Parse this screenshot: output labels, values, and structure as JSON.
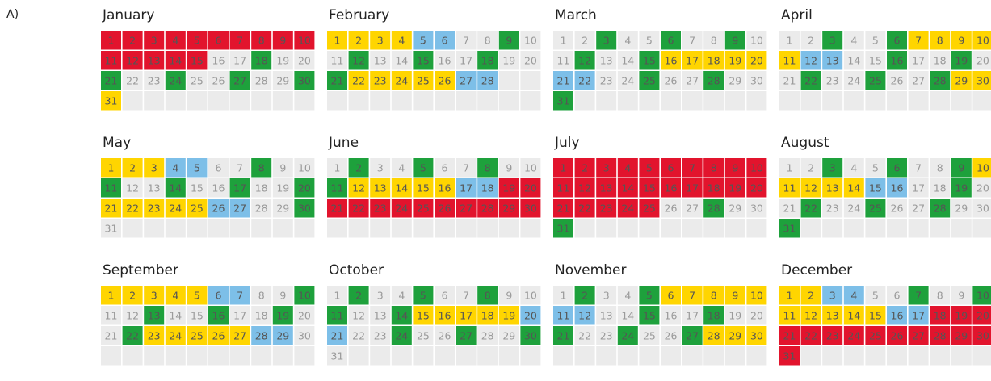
{
  "panel_label": "A)",
  "months": [
    {
      "name": "January",
      "days": [
        1,
        2,
        3,
        4,
        5,
        6,
        7,
        8,
        9,
        10,
        11,
        12,
        13,
        14,
        15,
        16,
        17,
        18,
        19,
        20,
        21,
        22,
        23,
        24,
        25,
        26,
        27,
        28,
        29,
        30,
        31
      ],
      "colors": [
        "#e2142d",
        "#e2142d",
        "#e2142d",
        "#e2142d",
        "#e2142d",
        "#e2142d",
        "#e2142d",
        "#e2142d",
        "#e2142d",
        "#e2142d",
        "#e2142d",
        "#e2142d",
        "#e2142d",
        "#e2142d",
        "#e2142d",
        "#ebebeb",
        "#ebebeb",
        "#1ea13c",
        "#ebebeb",
        "#ebebeb",
        "#1ea13c",
        "#ebebeb",
        "#ebebeb",
        "#1ea13c",
        "#ebebeb",
        "#ebebeb",
        "#1ea13c",
        "#ebebeb",
        "#ebebeb",
        "#1ea13c",
        "#ffd500"
      ]
    },
    {
      "name": "February",
      "days": [
        1,
        2,
        3,
        4,
        5,
        6,
        7,
        8,
        9,
        10,
        11,
        12,
        13,
        14,
        15,
        16,
        17,
        18,
        19,
        20,
        21,
        22,
        23,
        24,
        25,
        26,
        27,
        28
      ],
      "colors": [
        "#ffd500",
        "#ffd500",
        "#ffd500",
        "#ffd500",
        "#7dbfe8",
        "#7dbfe8",
        "#ebebeb",
        "#ebebeb",
        "#1ea13c",
        "#ebebeb",
        "#ebebeb",
        "#1ea13c",
        "#ebebeb",
        "#ebebeb",
        "#1ea13c",
        "#ebebeb",
        "#ebebeb",
        "#1ea13c",
        "#ebebeb",
        "#ebebeb",
        "#1ea13c",
        "#ffd500",
        "#ffd500",
        "#ffd500",
        "#ffd500",
        "#ffd500",
        "#7dbfe8",
        "#7dbfe8"
      ]
    },
    {
      "name": "March",
      "days": [
        1,
        2,
        3,
        4,
        5,
        6,
        7,
        8,
        9,
        10,
        11,
        12,
        13,
        14,
        15,
        16,
        17,
        18,
        19,
        20,
        21,
        22,
        23,
        24,
        25,
        26,
        27,
        28,
        29,
        30,
        31
      ],
      "colors": [
        "#ebebeb",
        "#ebebeb",
        "#1ea13c",
        "#ebebeb",
        "#ebebeb",
        "#1ea13c",
        "#ebebeb",
        "#ebebeb",
        "#1ea13c",
        "#ebebeb",
        "#ebebeb",
        "#1ea13c",
        "#ebebeb",
        "#ebebeb",
        "#1ea13c",
        "#ffd500",
        "#ffd500",
        "#ffd500",
        "#ffd500",
        "#ffd500",
        "#7dbfe8",
        "#7dbfe8",
        "#ebebeb",
        "#ebebeb",
        "#1ea13c",
        "#ebebeb",
        "#ebebeb",
        "#1ea13c",
        "#ebebeb",
        "#ebebeb",
        "#1ea13c"
      ]
    },
    {
      "name": "April",
      "days": [
        1,
        2,
        3,
        4,
        5,
        6,
        7,
        8,
        9,
        10,
        11,
        12,
        13,
        14,
        15,
        16,
        17,
        18,
        19,
        20,
        21,
        22,
        23,
        24,
        25,
        26,
        27,
        28,
        29,
        30
      ],
      "colors": [
        "#ebebeb",
        "#ebebeb",
        "#1ea13c",
        "#ebebeb",
        "#ebebeb",
        "#1ea13c",
        "#ffd500",
        "#ffd500",
        "#ffd500",
        "#ffd500",
        "#ffd500",
        "#7dbfe8",
        "#7dbfe8",
        "#ebebeb",
        "#ebebeb",
        "#1ea13c",
        "#ebebeb",
        "#ebebeb",
        "#1ea13c",
        "#ebebeb",
        "#ebebeb",
        "#1ea13c",
        "#ebebeb",
        "#ebebeb",
        "#1ea13c",
        "#ebebeb",
        "#ebebeb",
        "#1ea13c",
        "#ffd500",
        "#ffd500"
      ]
    },
    {
      "name": "May",
      "days": [
        1,
        2,
        3,
        4,
        5,
        6,
        7,
        8,
        9,
        10,
        11,
        12,
        13,
        14,
        15,
        16,
        17,
        18,
        19,
        20,
        21,
        22,
        23,
        24,
        25,
        26,
        27,
        28,
        29,
        30,
        31
      ],
      "colors": [
        "#ffd500",
        "#ffd500",
        "#ffd500",
        "#7dbfe8",
        "#7dbfe8",
        "#ebebeb",
        "#ebebeb",
        "#1ea13c",
        "#ebebeb",
        "#ebebeb",
        "#1ea13c",
        "#ebebeb",
        "#ebebeb",
        "#1ea13c",
        "#ebebeb",
        "#ebebeb",
        "#1ea13c",
        "#ebebeb",
        "#ebebeb",
        "#1ea13c",
        "#ffd500",
        "#ffd500",
        "#ffd500",
        "#ffd500",
        "#ffd500",
        "#7dbfe8",
        "#7dbfe8",
        "#ebebeb",
        "#ebebeb",
        "#1ea13c",
        "#ebebeb"
      ]
    },
    {
      "name": "June",
      "days": [
        1,
        2,
        3,
        4,
        5,
        6,
        7,
        8,
        9,
        10,
        11,
        12,
        13,
        14,
        15,
        16,
        17,
        18,
        19,
        20,
        21,
        22,
        23,
        24,
        25,
        26,
        27,
        28,
        29,
        30
      ],
      "colors": [
        "#ebebeb",
        "#1ea13c",
        "#ebebeb",
        "#ebebeb",
        "#1ea13c",
        "#ebebeb",
        "#ebebeb",
        "#1ea13c",
        "#ebebeb",
        "#ebebeb",
        "#1ea13c",
        "#ffd500",
        "#ffd500",
        "#ffd500",
        "#ffd500",
        "#ffd500",
        "#7dbfe8",
        "#7dbfe8",
        "#e2142d",
        "#e2142d",
        "#e2142d",
        "#e2142d",
        "#e2142d",
        "#e2142d",
        "#e2142d",
        "#e2142d",
        "#e2142d",
        "#e2142d",
        "#e2142d",
        "#e2142d"
      ]
    },
    {
      "name": "July",
      "days": [
        1,
        2,
        3,
        4,
        5,
        6,
        7,
        8,
        9,
        10,
        11,
        12,
        13,
        14,
        15,
        16,
        17,
        18,
        19,
        20,
        21,
        22,
        23,
        24,
        25,
        26,
        27,
        28,
        29,
        30,
        31
      ],
      "colors": [
        "#e2142d",
        "#e2142d",
        "#e2142d",
        "#e2142d",
        "#e2142d",
        "#e2142d",
        "#e2142d",
        "#e2142d",
        "#e2142d",
        "#e2142d",
        "#e2142d",
        "#e2142d",
        "#e2142d",
        "#e2142d",
        "#e2142d",
        "#e2142d",
        "#e2142d",
        "#e2142d",
        "#e2142d",
        "#e2142d",
        "#e2142d",
        "#e2142d",
        "#e2142d",
        "#e2142d",
        "#e2142d",
        "#ebebeb",
        "#ebebeb",
        "#1ea13c",
        "#ebebeb",
        "#ebebeb",
        "#1ea13c"
      ]
    },
    {
      "name": "August",
      "days": [
        1,
        2,
        3,
        4,
        5,
        6,
        7,
        8,
        9,
        10,
        11,
        12,
        13,
        14,
        15,
        16,
        17,
        18,
        19,
        20,
        21,
        22,
        23,
        24,
        25,
        26,
        27,
        28,
        29,
        30,
        31
      ],
      "colors": [
        "#ebebeb",
        "#ebebeb",
        "#1ea13c",
        "#ebebeb",
        "#ebebeb",
        "#1ea13c",
        "#ebebeb",
        "#ebebeb",
        "#1ea13c",
        "#ffd500",
        "#ffd500",
        "#ffd500",
        "#ffd500",
        "#ffd500",
        "#7dbfe8",
        "#7dbfe8",
        "#ebebeb",
        "#ebebeb",
        "#1ea13c",
        "#ebebeb",
        "#ebebeb",
        "#1ea13c",
        "#ebebeb",
        "#ebebeb",
        "#1ea13c",
        "#ebebeb",
        "#ebebeb",
        "#1ea13c",
        "#ebebeb",
        "#ebebeb",
        "#1ea13c"
      ]
    },
    {
      "name": "September",
      "days": [
        1,
        2,
        3,
        4,
        5,
        6,
        7,
        8,
        9,
        10,
        11,
        12,
        13,
        14,
        15,
        16,
        17,
        18,
        19,
        20,
        21,
        22,
        23,
        24,
        25,
        26,
        27,
        28,
        29,
        30
      ],
      "colors": [
        "#ffd500",
        "#ffd500",
        "#ffd500",
        "#ffd500",
        "#ffd500",
        "#7dbfe8",
        "#7dbfe8",
        "#ebebeb",
        "#ebebeb",
        "#1ea13c",
        "#ebebeb",
        "#ebebeb",
        "#1ea13c",
        "#ebebeb",
        "#ebebeb",
        "#1ea13c",
        "#ebebeb",
        "#ebebeb",
        "#1ea13c",
        "#ebebeb",
        "#ebebeb",
        "#1ea13c",
        "#ffd500",
        "#ffd500",
        "#ffd500",
        "#ffd500",
        "#ffd500",
        "#7dbfe8",
        "#7dbfe8",
        "#ebebeb"
      ]
    },
    {
      "name": "October",
      "days": [
        1,
        2,
        3,
        4,
        5,
        6,
        7,
        8,
        9,
        10,
        11,
        12,
        13,
        14,
        15,
        16,
        17,
        18,
        19,
        20,
        21,
        22,
        23,
        24,
        25,
        26,
        27,
        28,
        29,
        30,
        31
      ],
      "colors": [
        "#ebebeb",
        "#1ea13c",
        "#ebebeb",
        "#ebebeb",
        "#1ea13c",
        "#ebebeb",
        "#ebebeb",
        "#1ea13c",
        "#ebebeb",
        "#ebebeb",
        "#1ea13c",
        "#ebebeb",
        "#ebebeb",
        "#1ea13c",
        "#ffd500",
        "#ffd500",
        "#ffd500",
        "#ffd500",
        "#ffd500",
        "#7dbfe8",
        "#7dbfe8",
        "#ebebeb",
        "#ebebeb",
        "#1ea13c",
        "#ebebeb",
        "#ebebeb",
        "#1ea13c",
        "#ebebeb",
        "#ebebeb",
        "#1ea13c",
        "#ebebeb"
      ]
    },
    {
      "name": "November",
      "days": [
        1,
        2,
        3,
        4,
        5,
        6,
        7,
        8,
        9,
        10,
        11,
        12,
        13,
        14,
        15,
        16,
        17,
        18,
        19,
        20,
        21,
        22,
        23,
        24,
        25,
        26,
        27,
        28,
        29,
        30
      ],
      "colors": [
        "#ebebeb",
        "#1ea13c",
        "#ebebeb",
        "#ebebeb",
        "#1ea13c",
        "#ffd500",
        "#ffd500",
        "#ffd500",
        "#ffd500",
        "#ffd500",
        "#7dbfe8",
        "#7dbfe8",
        "#ebebeb",
        "#ebebeb",
        "#1ea13c",
        "#ebebeb",
        "#ebebeb",
        "#1ea13c",
        "#ebebeb",
        "#ebebeb",
        "#1ea13c",
        "#ebebeb",
        "#ebebeb",
        "#1ea13c",
        "#ebebeb",
        "#ebebeb",
        "#1ea13c",
        "#ffd500",
        "#ffd500",
        "#ffd500"
      ]
    },
    {
      "name": "December",
      "days": [
        1,
        2,
        3,
        4,
        5,
        6,
        7,
        8,
        9,
        10,
        11,
        12,
        13,
        14,
        15,
        16,
        17,
        18,
        19,
        20,
        21,
        22,
        23,
        24,
        25,
        26,
        27,
        28,
        29,
        30,
        31
      ],
      "colors": [
        "#ffd500",
        "#ffd500",
        "#7dbfe8",
        "#7dbfe8",
        "#ebebeb",
        "#ebebeb",
        "#1ea13c",
        "#ebebeb",
        "#ebebeb",
        "#1ea13c",
        "#ffd500",
        "#ffd500",
        "#ffd500",
        "#ffd500",
        "#ffd500",
        "#7dbfe8",
        "#7dbfe8",
        "#e2142d",
        "#e2142d",
        "#e2142d",
        "#e2142d",
        "#e2142d",
        "#e2142d",
        "#e2142d",
        "#e2142d",
        "#e2142d",
        "#e2142d",
        "#e2142d",
        "#e2142d",
        "#e2142d",
        "#e2142d"
      ]
    }
  ]
}
